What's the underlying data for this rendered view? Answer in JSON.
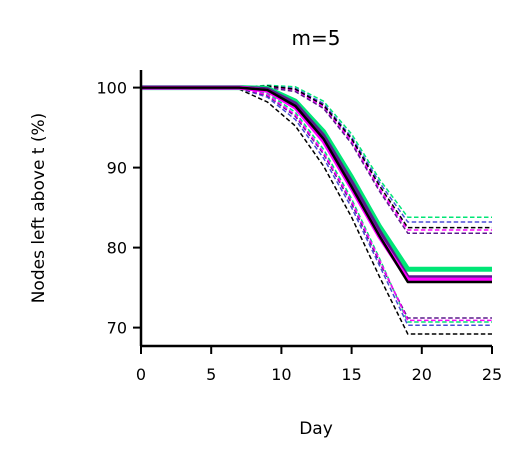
{
  "chart_data": {
    "type": "line",
    "title": "m=5",
    "xlabel": "Day",
    "ylabel": "Nodes left above t (%)",
    "xlim": [
      0,
      25
    ],
    "ylim": [
      67.7,
      102.2
    ],
    "xticks": [
      0,
      5,
      10,
      15,
      20,
      25
    ],
    "yticks": [
      70,
      80,
      90,
      100
    ],
    "grid": false,
    "legend": "none",
    "series": [
      {
        "style": "solid",
        "color": "#00e676",
        "width": 5,
        "x": [
          0,
          7,
          9,
          11,
          13,
          15,
          17,
          19,
          25
        ],
        "y": [
          100,
          100,
          99.9,
          98.3,
          94.5,
          88.8,
          82.6,
          77.3,
          77.3
        ]
      },
      {
        "style": "solid",
        "color": "#5a1a8c",
        "width": 4,
        "x": [
          0,
          7,
          9,
          11,
          13,
          15,
          17,
          19,
          25
        ],
        "y": [
          100,
          100,
          99.8,
          98.0,
          94.0,
          88.2,
          82.0,
          76.3,
          76.3
        ]
      },
      {
        "style": "solid",
        "color": "#ff00ff",
        "width": 4,
        "x": [
          0,
          7,
          9,
          11,
          13,
          15,
          17,
          19,
          25
        ],
        "y": [
          100,
          100,
          99.6,
          97.5,
          93.3,
          87.4,
          81.3,
          76.0,
          76.0
        ]
      },
      {
        "style": "solid",
        "color": "#000000",
        "width": 2.5,
        "x": [
          0,
          7,
          9,
          11,
          13,
          15,
          17,
          19,
          25
        ],
        "y": [
          100,
          100,
          99.7,
          97.7,
          93.6,
          87.6,
          81.4,
          75.7,
          75.7
        ]
      },
      {
        "style": "dashed",
        "color": "#00e676",
        "width": 1.5,
        "x": [
          0,
          7,
          9,
          11,
          13,
          15,
          17,
          19,
          25
        ],
        "y": [
          100,
          100,
          100.3,
          100.1,
          98.3,
          94.2,
          88.5,
          83.8,
          83.8
        ]
      },
      {
        "style": "dashed",
        "color": "#4b4bd6",
        "width": 1.5,
        "x": [
          0,
          7,
          9,
          11,
          13,
          15,
          17,
          19,
          25
        ],
        "y": [
          100,
          100,
          100.2,
          99.9,
          98.0,
          93.8,
          88.1,
          83.2,
          83.2
        ]
      },
      {
        "style": "dashed",
        "color": "#ff00ff",
        "width": 1.5,
        "x": [
          0,
          7,
          9,
          11,
          13,
          15,
          17,
          19,
          25
        ],
        "y": [
          100,
          100,
          100.1,
          99.7,
          97.6,
          93.3,
          87.3,
          82.2,
          82.2
        ]
      },
      {
        "style": "dashed",
        "color": "#5a1a8c",
        "width": 1.5,
        "x": [
          0,
          7,
          9,
          11,
          13,
          15,
          17,
          19,
          25
        ],
        "y": [
          100,
          100,
          100.0,
          99.5,
          97.4,
          93.0,
          87.0,
          81.8,
          81.8
        ]
      },
      {
        "style": "dashed",
        "color": "#000000",
        "width": 1.5,
        "x": [
          0,
          7,
          9,
          11,
          13,
          15,
          17,
          19,
          25
        ],
        "y": [
          100,
          100,
          100.2,
          99.8,
          97.8,
          93.6,
          87.7,
          82.5,
          82.5
        ]
      },
      {
        "style": "dashed",
        "color": "#000000",
        "width": 1.5,
        "x": [
          0,
          7,
          9,
          11,
          13,
          15,
          17,
          19,
          25
        ],
        "y": [
          100,
          99.8,
          98.2,
          95.2,
          90.2,
          83.8,
          76.3,
          69.2,
          69.2
        ]
      },
      {
        "style": "dashed",
        "color": "#4b4bd6",
        "width": 1.5,
        "x": [
          0,
          7,
          9,
          11,
          13,
          15,
          17,
          19,
          25
        ],
        "y": [
          100,
          99.9,
          98.8,
          96.0,
          91.2,
          85.0,
          77.7,
          70.3,
          70.3
        ]
      },
      {
        "style": "dashed",
        "color": "#5a1a8c",
        "width": 1.5,
        "x": [
          0,
          7,
          9,
          11,
          13,
          15,
          17,
          19,
          25
        ],
        "y": [
          100,
          99.9,
          99.0,
          96.4,
          91.7,
          85.5,
          78.1,
          71.2,
          71.2
        ]
      },
      {
        "style": "dashed",
        "color": "#00e676",
        "width": 1.5,
        "x": [
          0,
          7,
          9,
          11,
          13,
          15,
          17,
          19,
          25
        ],
        "y": [
          100,
          100,
          99.3,
          96.9,
          92.3,
          86.1,
          78.6,
          70.7,
          70.7
        ]
      },
      {
        "style": "dashed",
        "color": "#ff00ff",
        "width": 1.5,
        "x": [
          0,
          7,
          9,
          11,
          13,
          15,
          17,
          19,
          25
        ],
        "y": [
          100,
          100,
          99.1,
          96.6,
          91.9,
          85.8,
          78.4,
          70.9,
          70.9
        ]
      }
    ]
  }
}
